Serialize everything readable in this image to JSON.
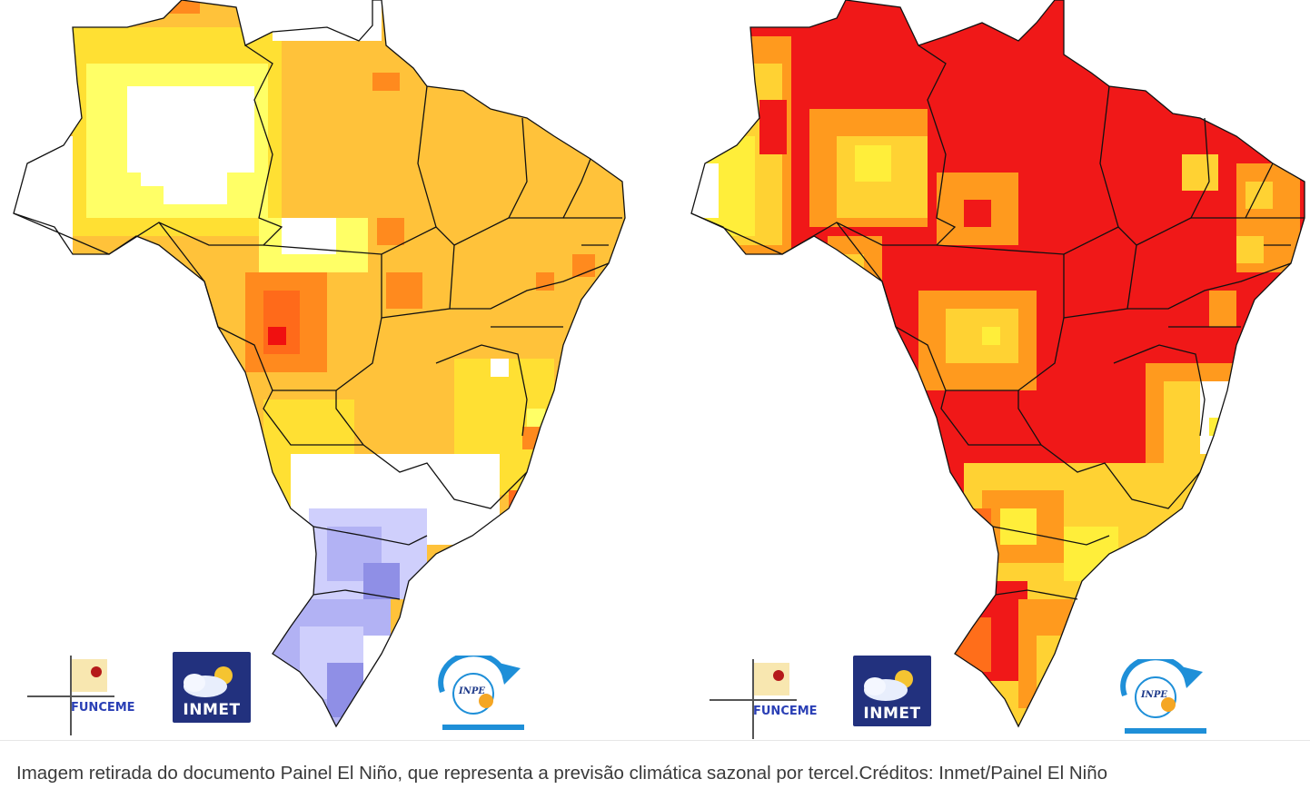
{
  "maps": [
    {
      "id": "left",
      "colors": {
        "white": "#ffffff",
        "pale_yellow": "#ffff66",
        "yellow": "#ffe033",
        "light_orange": "#ffc23a",
        "orange": "#ff8a1e",
        "deep_orange": "#ff6a1a",
        "red": "#f01010",
        "pale_blue": "#cfcffc",
        "light_blue": "#b2b2f4",
        "blue": "#8f8fe6"
      }
    },
    {
      "id": "right",
      "colors": {
        "pale_yellow": "#ffee3a",
        "yellow": "#ffd233",
        "orange": "#ff9a1e",
        "deep_orange": "#ff6e1a",
        "red": "#f01818",
        "white": "#ffffff"
      }
    }
  ],
  "logos": {
    "funceme_label": "FUNCEME",
    "inmet_label": "INMET",
    "inpe_label": "INPE",
    "inmet_bg": "#22317e"
  },
  "caption": "Imagem retirada do documento Painel El Niño, que representa a previsão climática sazonal por tercel.Créditos: Inmet/Painel El Niño"
}
